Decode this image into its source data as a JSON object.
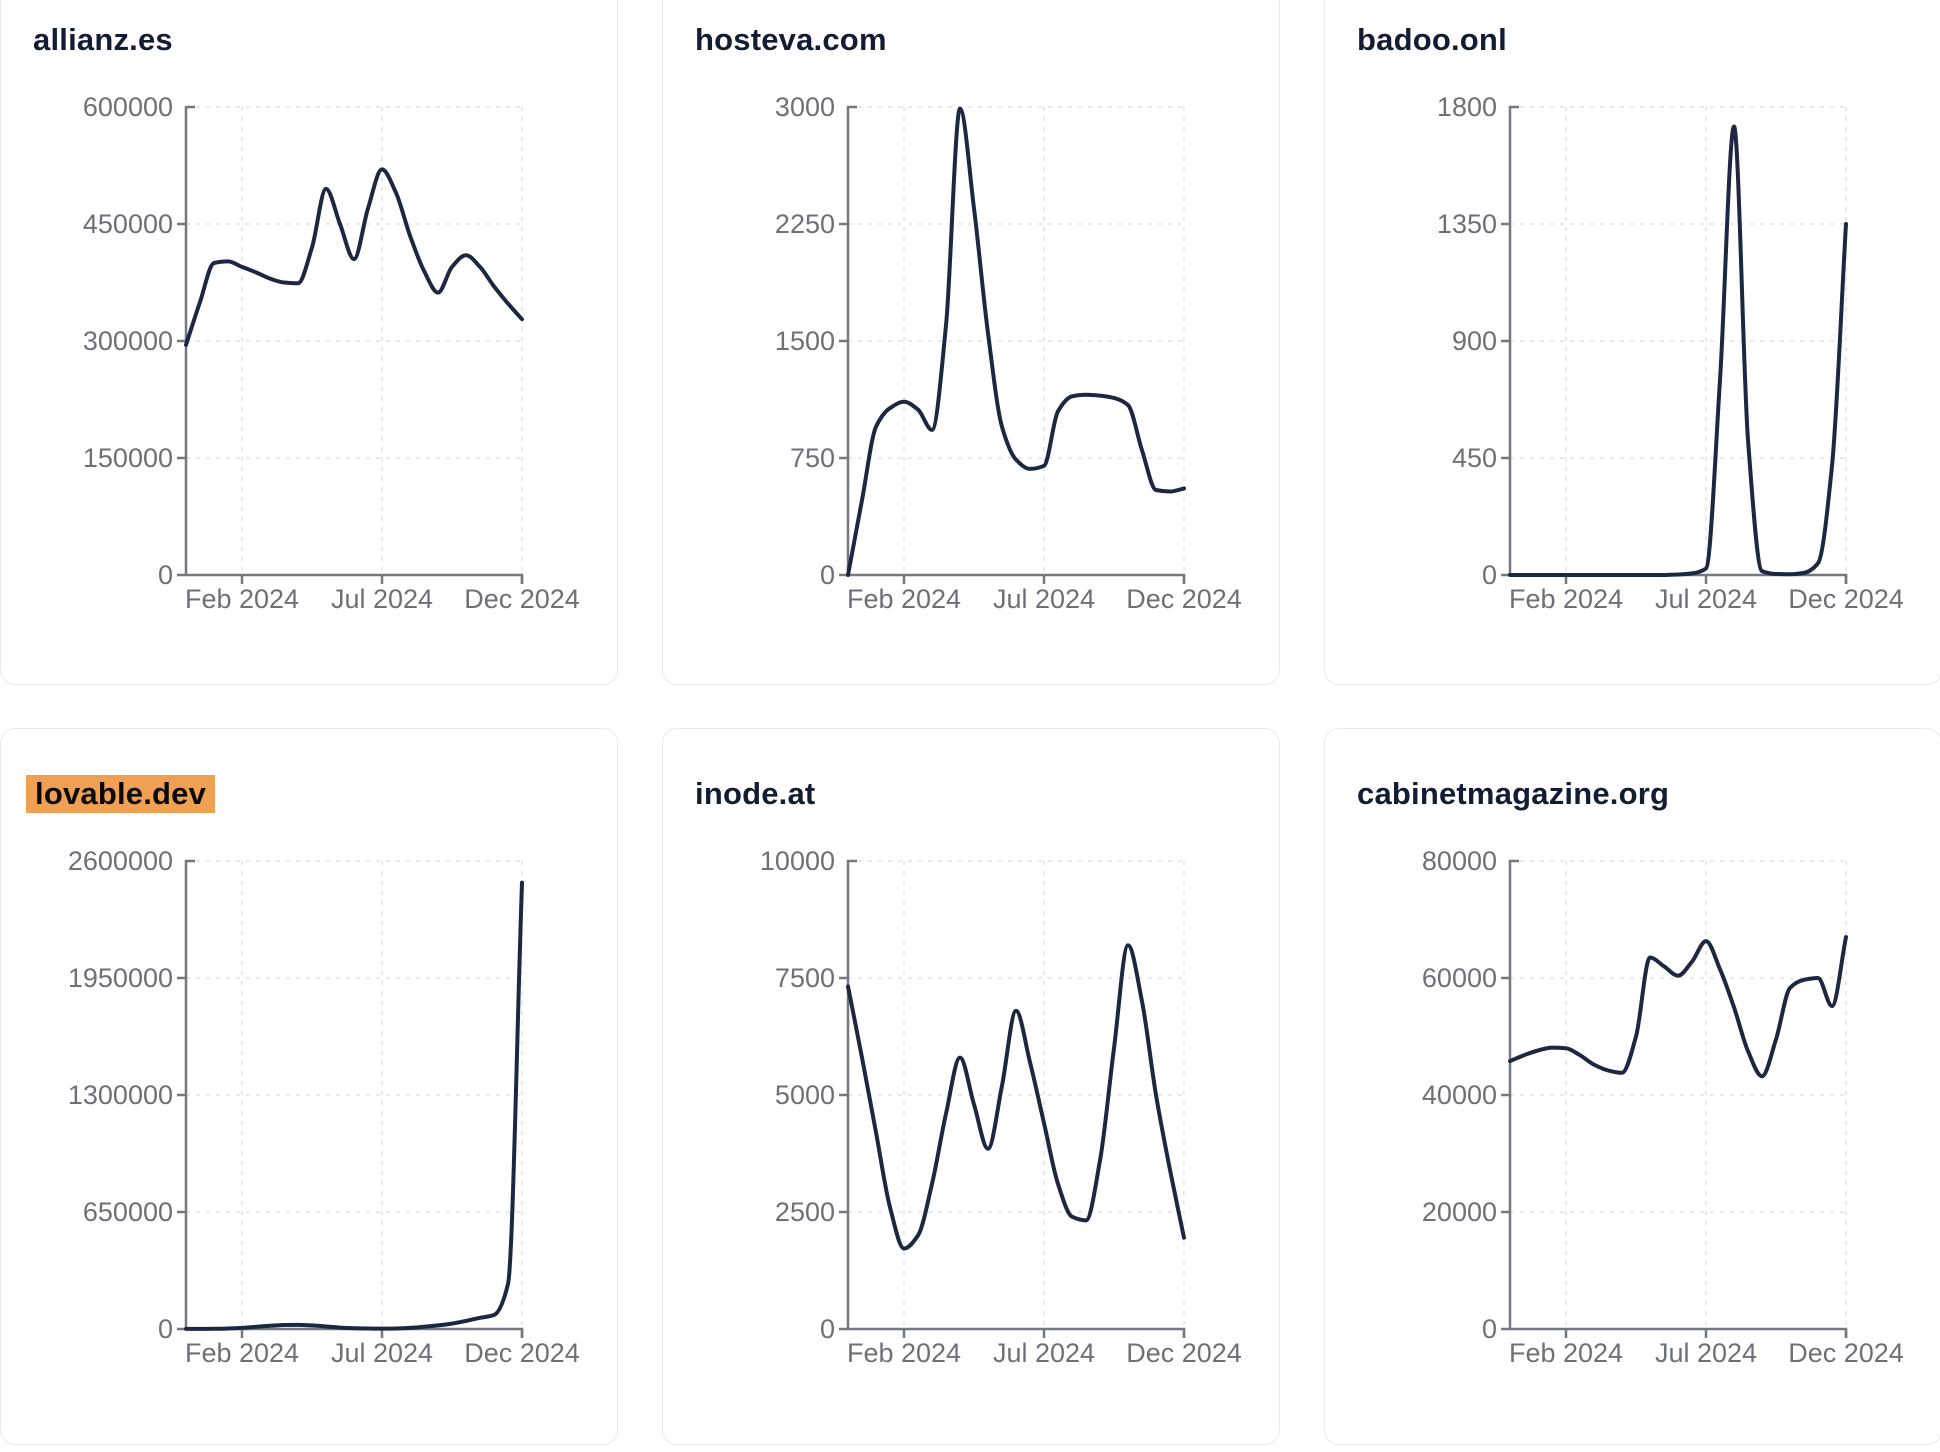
{
  "style": {
    "page_bg": "#ffffff",
    "card_bg": "#ffffff",
    "card_border": "#e6eaf1",
    "title_color": "#131c33",
    "highlight_bg": "#efa052",
    "highlight_text": "#0a0a0a",
    "line_color": "#1e2742",
    "axis_color": "#75787e",
    "tick_label_color": "#6d7177",
    "grid_color": "#e7e9ed"
  },
  "x_axis": {
    "start": "Dec 2023",
    "end": "Dec 2024",
    "domain_months": 12,
    "tick_labels": [
      "Feb 2024",
      "Jul 2024",
      "Dec 2024"
    ],
    "tick_months": [
      2,
      7,
      12
    ]
  },
  "chart_data": [
    {
      "type": "line",
      "title": "allianz.es",
      "title_highlighted": false,
      "ylim": [
        0,
        600000
      ],
      "y_ticks": [
        0,
        150000,
        300000,
        450000,
        600000
      ],
      "x_tick_labels": [
        "Feb 2024",
        "Jul 2024",
        "Dec 2024"
      ],
      "points_per_month": 2,
      "x_start": "Dec 2023",
      "x_end": "Dec 2024",
      "values": [
        295000,
        350000,
        400000,
        402000,
        395000,
        388000,
        380000,
        375000,
        374000,
        420000,
        495000,
        450000,
        405000,
        470000,
        520000,
        490000,
        435000,
        390000,
        362000,
        395000,
        410000,
        395000,
        370000,
        348000,
        328000
      ]
    },
    {
      "type": "line",
      "title": "hosteva.com",
      "title_highlighted": false,
      "ylim": [
        0,
        3000
      ],
      "y_ticks": [
        0,
        750,
        1500,
        2250,
        3000
      ],
      "x_tick_labels": [
        "Feb 2024",
        "Jul 2024",
        "Dec 2024"
      ],
      "points_per_month": 2,
      "x_start": "Dec 2023",
      "x_end": "Dec 2024",
      "values": [
        0,
        480,
        950,
        1070,
        1110,
        1060,
        930,
        1600,
        2990,
        2350,
        1550,
        950,
        740,
        680,
        700,
        1050,
        1145,
        1155,
        1150,
        1135,
        1090,
        800,
        545,
        535,
        555
      ]
    },
    {
      "type": "line",
      "title": "badoo.onl",
      "title_highlighted": false,
      "ylim": [
        0,
        1800
      ],
      "y_ticks": [
        0,
        450,
        900,
        1350,
        1800
      ],
      "x_tick_labels": [
        "Feb 2024",
        "Jul 2024",
        "Dec 2024"
      ],
      "points_per_month": 2,
      "x_start": "Dec 2023",
      "x_end": "Dec 2024",
      "values": [
        0,
        0,
        0,
        0,
        0,
        0,
        0,
        0,
        0,
        0,
        0,
        0,
        2,
        6,
        25,
        750,
        1725,
        520,
        15,
        4,
        3,
        8,
        45,
        420,
        1350
      ]
    },
    {
      "type": "line",
      "title": "lovable.dev",
      "title_highlighted": true,
      "ylim": [
        0,
        2600000
      ],
      "y_ticks": [
        0,
        650000,
        1300000,
        1950000,
        2600000
      ],
      "x_tick_labels": [
        "Feb 2024",
        "Jul 2024",
        "Dec 2024"
      ],
      "points_per_month": 2,
      "x_start": "Dec 2023",
      "x_end": "Dec 2024",
      "values": [
        500,
        700,
        1200,
        2500,
        6000,
        12000,
        18000,
        22000,
        23000,
        20000,
        14000,
        8000,
        4000,
        2500,
        2000,
        3000,
        6000,
        12000,
        20000,
        30000,
        45000,
        62000,
        78000,
        250000,
        2480000
      ]
    },
    {
      "type": "line",
      "title": "inode.at",
      "title_highlighted": false,
      "ylim": [
        0,
        10000
      ],
      "y_ticks": [
        0,
        2500,
        5000,
        7500,
        10000
      ],
      "x_tick_labels": [
        "Feb 2024",
        "Jul 2024",
        "Dec 2024"
      ],
      "points_per_month": 2,
      "x_start": "Dec 2023",
      "x_end": "Dec 2024",
      "values": [
        7320,
        5800,
        4200,
        2600,
        1720,
        2000,
        3100,
        4600,
        5800,
        4800,
        3850,
        5200,
        6800,
        5700,
        4400,
        3100,
        2400,
        2320,
        3600,
        6000,
        8200,
        7000,
        5000,
        3400,
        1950
      ]
    },
    {
      "type": "line",
      "title": "cabinetmagazine.org",
      "title_highlighted": false,
      "ylim": [
        0,
        80000
      ],
      "y_ticks": [
        0,
        20000,
        40000,
        60000,
        80000
      ],
      "x_tick_labels": [
        "Feb 2024",
        "Jul 2024",
        "Dec 2024"
      ],
      "points_per_month": 2,
      "x_start": "Dec 2023",
      "x_end": "Dec 2024",
      "values": [
        45800,
        46800,
        47600,
        48100,
        48000,
        46800,
        45200,
        44200,
        43800,
        50000,
        63500,
        62000,
        60400,
        62800,
        66300,
        61500,
        55000,
        47500,
        43200,
        49500,
        58300,
        59700,
        60000,
        55200,
        67000
      ]
    }
  ]
}
